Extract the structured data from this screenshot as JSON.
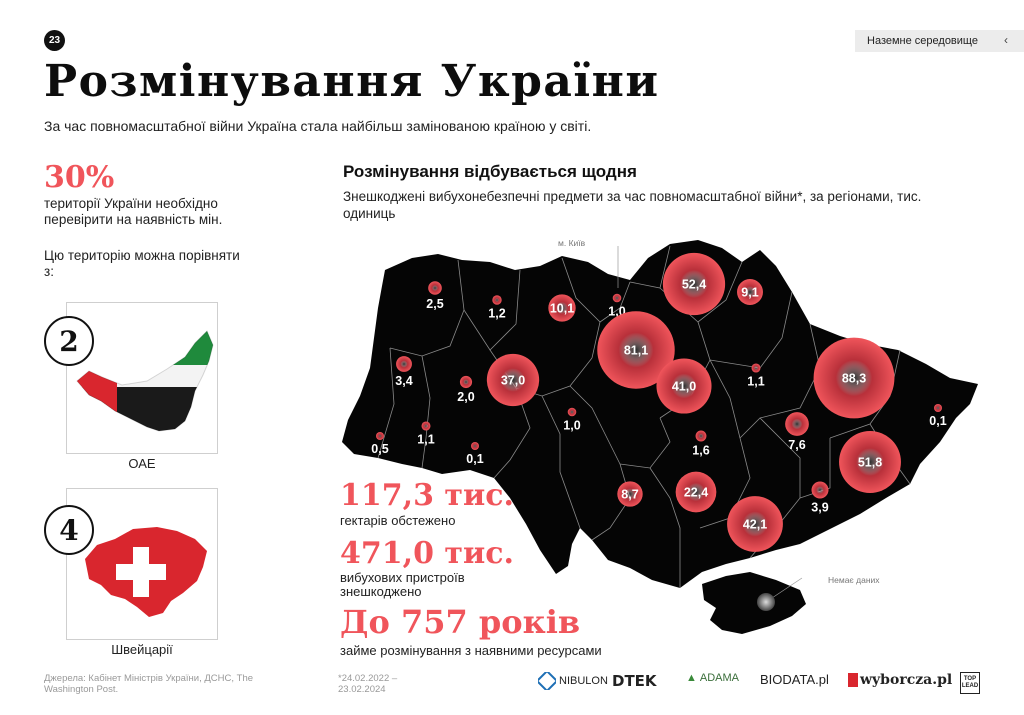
{
  "header": {
    "page_number": "23",
    "section_tab": "Наземне середовище",
    "title": "Розмінування України",
    "subtitle": "За час повномасштабної війни Україна стала найбільш замінованою країною у світі."
  },
  "left": {
    "percent": "30%",
    "percent_desc": "території України необхідно перевірити на наявність мін.",
    "compare_text": "Цю територію можна порівняти з:",
    "cards": [
      {
        "rank": "2",
        "caption": "ОАЕ"
      },
      {
        "rank": "4",
        "caption": "Швейцарії"
      }
    ]
  },
  "map": {
    "title": "Розмінування відбувається щодня",
    "subtitle": "Знешкоджені вибухонебезпечні предмети за час повномасштабної війни*, за регіонами, тис. одиниць",
    "kyiv_callout": "м. Київ",
    "no_data_callout": "Немає даних",
    "regions": [
      {
        "value": "2,5"
      },
      {
        "value": "1,2"
      },
      {
        "value": "10,1"
      },
      {
        "value": "1,0"
      },
      {
        "value": "52,4"
      },
      {
        "value": "9,1"
      },
      {
        "value": "81,1"
      },
      {
        "value": "3,4"
      },
      {
        "value": "2,0"
      },
      {
        "value": "37,0"
      },
      {
        "value": "41,0"
      },
      {
        "value": "1,1"
      },
      {
        "value": "88,3"
      },
      {
        "value": "0,1"
      },
      {
        "value": "0,5"
      },
      {
        "value": "1,1"
      },
      {
        "value": "1,0"
      },
      {
        "value": "0,1"
      },
      {
        "value": "1,6"
      },
      {
        "value": "7,6"
      },
      {
        "value": "51,8"
      },
      {
        "value": "8,7"
      },
      {
        "value": "22,4"
      },
      {
        "value": "3,9"
      },
      {
        "value": "42,1"
      }
    ]
  },
  "stats": [
    {
      "value": "117,3 тис.",
      "label": "гектарів обстежено"
    },
    {
      "value": "471,0 тис.",
      "label": "вибухових пристроїв знешкоджено"
    },
    {
      "value": "До 757 років",
      "label": "займе розмінування з наявними ресурсами"
    }
  ],
  "footer": {
    "sources": "Джерела: Кабінет Міністрів України, ДСНС, The Washington Post.",
    "period": "*24.02.2022 – 23.02.2024",
    "logos": [
      "NIBULON",
      "DTEK",
      "ADAMA",
      "BIODATA.pl",
      "wyborcza.pl",
      "TOP LEAD"
    ]
  },
  "colors": {
    "accent": "#f0555b",
    "map_fill": "#050505",
    "bubble": "#e8424c"
  }
}
